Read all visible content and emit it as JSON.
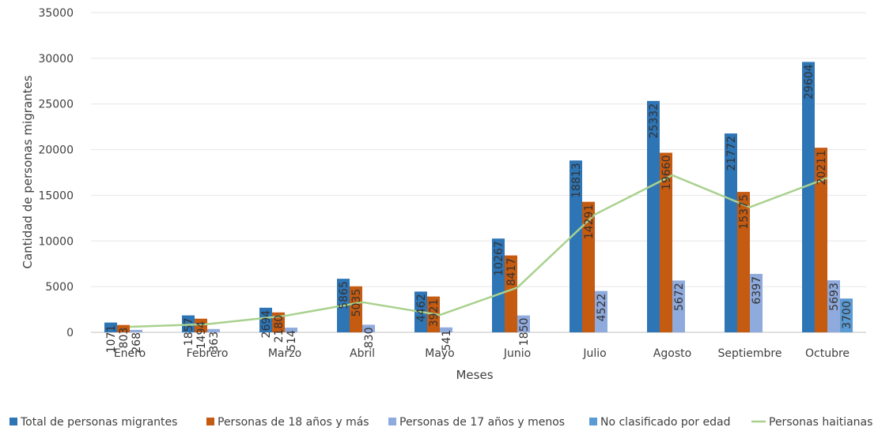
{
  "chart_data": {
    "type": "bar",
    "xlabel": "Meses",
    "ylabel": "Cantidad de personas migrantes",
    "ylim": [
      0,
      35000
    ],
    "y_ticks": [
      "0",
      "5000",
      "10000",
      "15000",
      "20000",
      "25000",
      "30000",
      "35000"
    ],
    "grid": true,
    "legend_position": "bottom",
    "categories": [
      "Enero",
      "Febrero",
      "Marzo",
      "Abril",
      "Mayo",
      "Junio",
      "Julio",
      "Agosto",
      "Septiembre",
      "Octubre"
    ],
    "series": [
      {
        "name": "Total de personas migrantes",
        "type": "bar",
        "color": "#2E75B6",
        "values": [
          1071,
          1857,
          2694,
          5865,
          4462,
          10267,
          18813,
          25332,
          21772,
          29604
        ],
        "labels": [
          "1071",
          "1857",
          "2694",
          "5865",
          "4462",
          "10267",
          "18813",
          "25332",
          "21772",
          "29604"
        ]
      },
      {
        "name": "Personas de 18 años y más",
        "type": "bar",
        "color": "#C55A11",
        "values": [
          803,
          1494,
          2180,
          5035,
          3921,
          8417,
          14291,
          19660,
          15375,
          20211
        ],
        "labels": [
          "803",
          "1494",
          "2180",
          "5035",
          "3921",
          "8417",
          "14291",
          "19660",
          "15375",
          "20211"
        ]
      },
      {
        "name": "Personas de 17 años y menos",
        "type": "bar",
        "color": "#8FAADC",
        "values": [
          268,
          363,
          514,
          830,
          541,
          1850,
          4522,
          5672,
          6397,
          5693
        ],
        "labels": [
          "268",
          "363",
          "514",
          "830",
          "541",
          "1850",
          "4522",
          "5672",
          "6397",
          "5693"
        ]
      },
      {
        "name": "No clasificado por edad",
        "type": "bar",
        "color": "#5B9BD5",
        "values": [
          0,
          0,
          0,
          0,
          0,
          0,
          0,
          0,
          0,
          3700
        ],
        "labels": [
          "",
          "",
          "",
          "",
          "",
          "",
          "",
          "",
          "",
          "3700"
        ]
      },
      {
        "name": "Personas haitianas",
        "type": "line",
        "color": "#A9D18E",
        "values": [
          600,
          900,
          1800,
          3300,
          1900,
          4900,
          12900,
          17200,
          13700,
          16900
        ]
      }
    ]
  }
}
